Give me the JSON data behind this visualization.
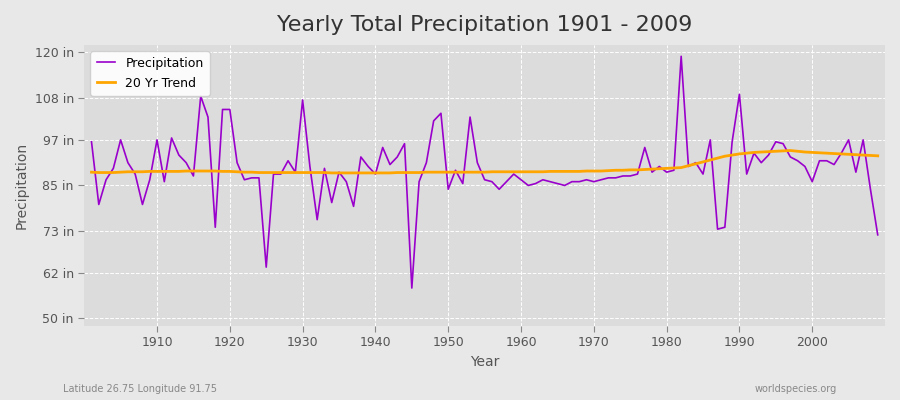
{
  "title": "Yearly Total Precipitation 1901 - 2009",
  "xlabel": "Year",
  "ylabel": "Precipitation",
  "lat_lon_label": "Latitude 26.75 Longitude 91.75",
  "watermark": "worldspecies.org",
  "years": [
    1901,
    1902,
    1903,
    1904,
    1905,
    1906,
    1907,
    1908,
    1909,
    1910,
    1911,
    1912,
    1913,
    1914,
    1915,
    1916,
    1917,
    1918,
    1919,
    1920,
    1921,
    1922,
    1923,
    1924,
    1925,
    1926,
    1927,
    1928,
    1929,
    1930,
    1931,
    1932,
    1933,
    1934,
    1935,
    1936,
    1937,
    1938,
    1939,
    1940,
    1941,
    1942,
    1943,
    1944,
    1945,
    1946,
    1947,
    1948,
    1949,
    1950,
    1951,
    1952,
    1953,
    1954,
    1955,
    1956,
    1957,
    1958,
    1959,
    1960,
    1961,
    1962,
    1963,
    1964,
    1965,
    1966,
    1967,
    1968,
    1969,
    1970,
    1971,
    1972,
    1973,
    1974,
    1975,
    1976,
    1977,
    1978,
    1979,
    1980,
    1981,
    1982,
    1983,
    1984,
    1985,
    1986,
    1987,
    1988,
    1989,
    1990,
    1991,
    1992,
    1993,
    1994,
    1995,
    1996,
    1997,
    1998,
    1999,
    2000,
    2001,
    2002,
    2003,
    2004,
    2005,
    2006,
    2007,
    2008,
    2009
  ],
  "precip_inches": [
    96.5,
    80.0,
    86.5,
    89.5,
    97.0,
    91.0,
    88.0,
    80.0,
    86.5,
    97.0,
    86.0,
    97.5,
    93.0,
    91.0,
    87.5,
    108.5,
    103.0,
    74.0,
    105.0,
    105.0,
    91.0,
    86.5,
    87.0,
    87.0,
    63.5,
    88.0,
    88.0,
    91.5,
    88.5,
    107.5,
    90.0,
    76.0,
    89.5,
    80.5,
    88.5,
    86.0,
    79.5,
    92.5,
    90.0,
    88.0,
    95.0,
    90.5,
    92.5,
    96.0,
    58.0,
    86.0,
    91.0,
    102.0,
    104.0,
    84.0,
    89.0,
    85.5,
    103.0,
    91.0,
    86.5,
    86.0,
    84.0,
    86.0,
    88.0,
    86.5,
    85.0,
    85.5,
    86.5,
    86.0,
    85.5,
    85.0,
    86.0,
    86.0,
    86.5,
    86.0,
    86.5,
    87.0,
    87.0,
    87.5,
    87.5,
    88.0,
    95.0,
    88.5,
    90.0,
    88.5,
    89.0,
    119.0,
    90.0,
    91.0,
    88.0,
    97.0,
    73.5,
    74.0,
    96.5,
    109.0,
    88.0,
    93.5,
    91.0,
    93.0,
    96.5,
    96.0,
    92.5,
    91.5,
    90.0,
    86.0,
    91.5,
    91.5,
    90.5,
    93.5,
    97.0,
    88.5,
    97.0,
    84.0,
    72.0
  ],
  "trend_inches": [
    88.5,
    88.4,
    88.4,
    88.4,
    88.5,
    88.6,
    88.6,
    88.6,
    88.7,
    88.7,
    88.7,
    88.7,
    88.7,
    88.8,
    88.8,
    88.8,
    88.8,
    88.8,
    88.7,
    88.7,
    88.6,
    88.5,
    88.5,
    88.4,
    88.4,
    88.4,
    88.4,
    88.4,
    88.4,
    88.4,
    88.4,
    88.4,
    88.4,
    88.3,
    88.3,
    88.3,
    88.3,
    88.3,
    88.3,
    88.3,
    88.3,
    88.3,
    88.4,
    88.4,
    88.4,
    88.4,
    88.5,
    88.5,
    88.5,
    88.5,
    88.5,
    88.5,
    88.5,
    88.5,
    88.5,
    88.6,
    88.6,
    88.6,
    88.6,
    88.6,
    88.6,
    88.6,
    88.6,
    88.7,
    88.7,
    88.7,
    88.7,
    88.7,
    88.8,
    88.8,
    88.8,
    88.9,
    89.0,
    89.0,
    89.1,
    89.1,
    89.2,
    89.3,
    89.4,
    89.5,
    89.6,
    89.7,
    90.2,
    90.7,
    91.2,
    91.7,
    92.2,
    92.7,
    93.0,
    93.3,
    93.5,
    93.7,
    93.8,
    93.9,
    94.0,
    94.1,
    94.2,
    94.0,
    93.8,
    93.7,
    93.6,
    93.5,
    93.4,
    93.3,
    93.2,
    93.1,
    93.0,
    92.9,
    92.8
  ],
  "precip_color": "#9900CC",
  "trend_color": "#FFA500",
  "bg_color": "#E8E8E8",
  "plot_bg_color": "#DCDCDC",
  "grid_color": "#FFFFFF",
  "ytick_labels": [
    "50 in",
    "62 in",
    "73 in",
    "85 in",
    "97 in",
    "108 in",
    "120 in"
  ],
  "ytick_values": [
    50,
    62,
    73,
    85,
    97,
    108,
    120
  ],
  "ylim": [
    48,
    122
  ],
  "xlim": [
    1900,
    2010
  ],
  "xtick_values": [
    1910,
    1920,
    1930,
    1940,
    1950,
    1960,
    1970,
    1980,
    1990,
    2000
  ],
  "title_fontsize": 16,
  "label_fontsize": 10,
  "tick_fontsize": 9,
  "legend_fontsize": 9
}
